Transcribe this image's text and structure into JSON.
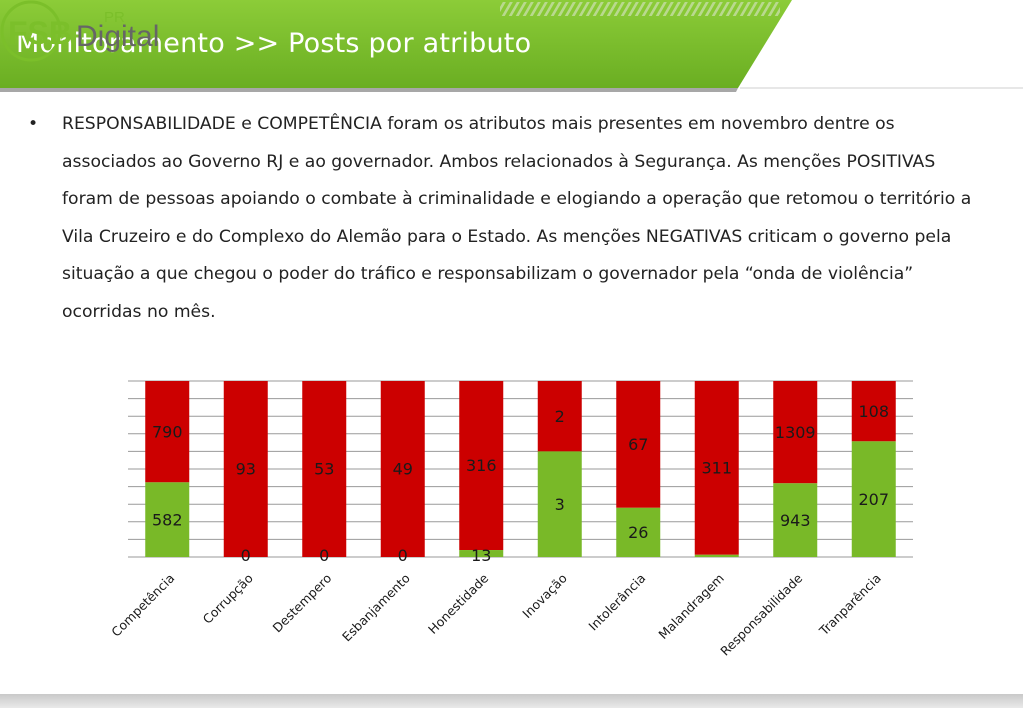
{
  "header": {
    "title": "Monitoramento >> Posts por atributo"
  },
  "logo": {
    "fsb": "FSB",
    "pr": "PR",
    "digital": "Digital",
    "colors": {
      "green": "#7bbf2a",
      "gray": "#666666"
    }
  },
  "body": {
    "bullet": "•",
    "paragraph": "RESPONSABILIDADE e COMPETÊNCIA foram os atributos mais presentes em novembro dentre os associados ao Governo RJ e ao governador. Ambos relacionados à Segurança. As menções POSITIVAS foram de pessoas apoiando o combate à criminalidade e elogiando a operação que retomou o território a Vila Cruzeiro e do Complexo do Alemão para o Estado. As menções NEGATIVAS criticam o governo pela situação a que chegou o poder do tráfico e responsabilizam o governador pela “onda de violência” ocorridas no mês."
  },
  "chart_data": {
    "type": "bar",
    "stacked": "percent",
    "categories": [
      "Competência",
      "Corrupção",
      "Destempero",
      "Esbanjamento",
      "Honestidade",
      "Inovação",
      "Intolerância",
      "Malandragem",
      "Responsabilidade",
      "Tranparência"
    ],
    "series": [
      {
        "color": "#79b928",
        "values": [
          582,
          0,
          0,
          0,
          13,
          3,
          26,
          4,
          943,
          207
        ],
        "labels": [
          "582",
          "0",
          "0",
          "0",
          "13",
          "3",
          "26",
          "",
          "943",
          "207"
        ]
      },
      {
        "color": "#cc0000",
        "values": [
          790,
          93,
          53,
          49,
          316,
          2,
          67,
          311,
          1309,
          108
        ],
        "labels": [
          "790",
          "93",
          "53",
          "49",
          "316",
          "2",
          "67",
          "311",
          "1309",
          "108"
        ]
      }
    ],
    "ylim": [
      0,
      1
    ],
    "grid": true,
    "legend": "none"
  },
  "colors": {
    "header_green": "#7bbf2a",
    "positive": "#79b928",
    "negative": "#cc0000"
  }
}
